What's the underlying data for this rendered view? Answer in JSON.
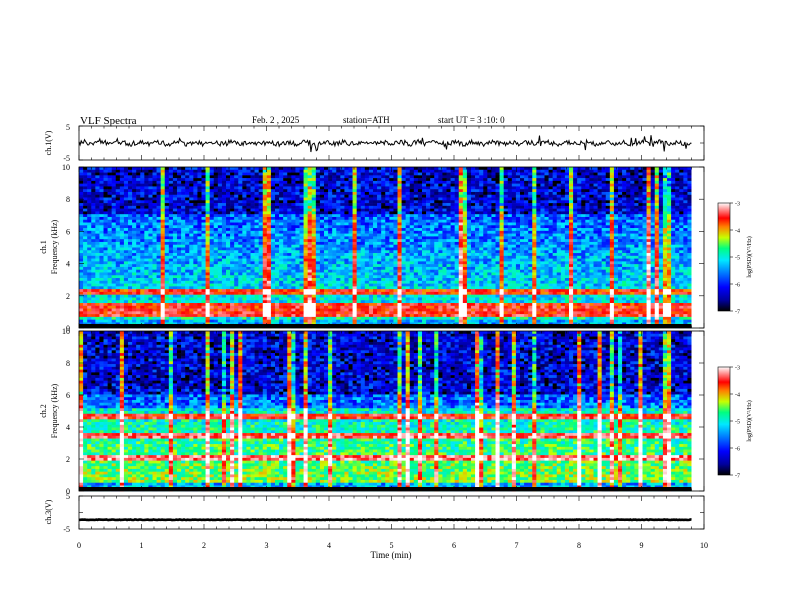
{
  "header": {
    "title": "VLF Spectra",
    "date": "Feb. 2 , 2025",
    "station": "station=ATH",
    "start": "start UT = 3 :10: 0"
  },
  "chart_data": [
    {
      "type": "line",
      "ylabel": "ch.1(V)",
      "ylim": [
        -5,
        5
      ],
      "yticks": [
        "5",
        "-5"
      ],
      "x_range_min": [
        0,
        9.8
      ],
      "trace_level": 0,
      "color": "#000000"
    },
    {
      "type": "heatmap",
      "ylabel": "ch.1\nFrequency (kHz)",
      "ylim": [
        0,
        10
      ],
      "yticks": [
        "0",
        "2",
        "4",
        "6",
        "8",
        "10"
      ],
      "colorbar": {
        "label": "log(PSD)(V²/Hz)",
        "range": [
          -7,
          -3
        ],
        "ticks": [
          "-3",
          "-4",
          "-5",
          "-6",
          "-7"
        ]
      },
      "noise_band_khz": [
        7,
        10
      ],
      "strong_lines_khz": [
        2.2,
        1.3,
        0.8
      ]
    },
    {
      "type": "heatmap",
      "ylabel": "ch.2\nFrequency (kHz)",
      "ylim": [
        0,
        10
      ],
      "yticks": [
        "0",
        "2",
        "4",
        "6",
        "8",
        "10"
      ],
      "colorbar": {
        "label": "log(PSD)(V²/Hz)",
        "range": [
          -7,
          -3
        ],
        "ticks": [
          "-3",
          "-4",
          "-5",
          "-6",
          "-7"
        ]
      },
      "noise_band_khz": [
        6,
        10
      ],
      "strong_lines_khz": [
        2.1,
        3.5,
        4.6
      ]
    },
    {
      "type": "line",
      "ylabel": "ch.3(V)",
      "ylim": [
        -5,
        5
      ],
      "yticks": [
        "5",
        "-5"
      ],
      "x_range_min": [
        0,
        9.8
      ],
      "trace_level": -2.2,
      "color": "#000000"
    }
  ],
  "xaxis": {
    "label": "Time (min)",
    "range": [
      0,
      10
    ],
    "ticks": [
      "0",
      "1",
      "2",
      "3",
      "4",
      "5",
      "6",
      "7",
      "8",
      "9",
      "10"
    ]
  },
  "colors": {
    "colormap": [
      "#000000",
      "#00009c",
      "#0000ff",
      "#0078ff",
      "#00e8ff",
      "#00ff80",
      "#c8ff00",
      "#ff8000",
      "#ff0000",
      "#ff8080",
      "#ffffff"
    ]
  }
}
